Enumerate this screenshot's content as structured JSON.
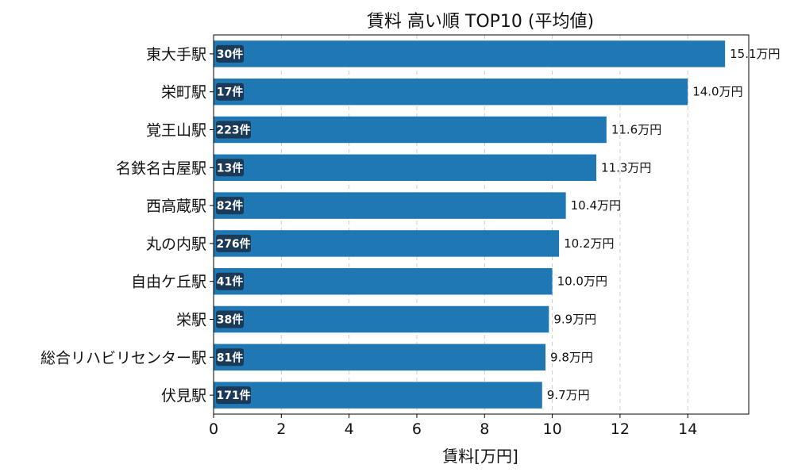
{
  "chart_data": {
    "type": "bar",
    "orientation": "horizontal",
    "title": "賃料 高い順 TOP10 (平均値)",
    "xlabel": "賃料[万円]",
    "ylabel": "",
    "xlim": [
      0,
      15.8
    ],
    "xticks": [
      0,
      2,
      4,
      6,
      8,
      10,
      12,
      14
    ],
    "grid": "x-dashed",
    "bar_color": "#1f77b4",
    "badge_color": "#1a3a57",
    "categories": [
      "東大手駅",
      "栄町駅",
      "覚王山駅",
      "名鉄名古屋駅",
      "西高蔵駅",
      "丸の内駅",
      "自由ケ丘駅",
      "栄駅",
      "総合リハビリセンター駅",
      "伏見駅"
    ],
    "values": [
      15.1,
      14.0,
      11.6,
      11.3,
      10.4,
      10.2,
      10.0,
      9.9,
      9.8,
      9.7
    ],
    "value_labels": [
      "15.1万円",
      "14.0万円",
      "11.6万円",
      "11.3万円",
      "10.4万円",
      "10.2万円",
      "10.0万円",
      "9.9万円",
      "9.8万円",
      "9.7万円"
    ],
    "counts": [
      "30件",
      "17件",
      "223件",
      "13件",
      "82件",
      "276件",
      "41件",
      "38件",
      "81件",
      "171件"
    ]
  }
}
